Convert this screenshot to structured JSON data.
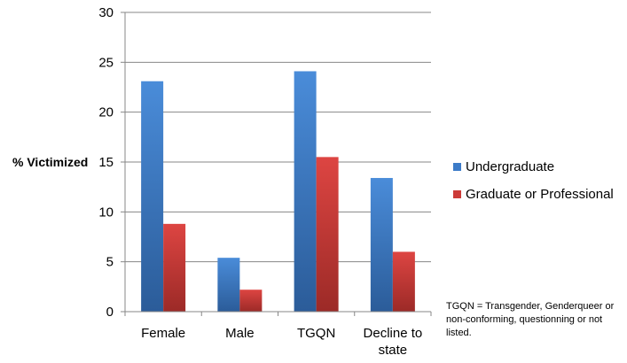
{
  "chart_data": {
    "type": "bar",
    "ylabel": "% Victimized",
    "xlabel": "",
    "ylim": [
      0,
      30
    ],
    "yticks": [
      "0",
      "5",
      "10",
      "15",
      "20",
      "25",
      "30"
    ],
    "grid": true,
    "legend_position": "right",
    "categories": [
      "Female",
      "Male",
      "TGQN",
      "Decline to state"
    ],
    "category_lines": [
      [
        "Female"
      ],
      [
        "Male"
      ],
      [
        "TGQN"
      ],
      [
        "Decline to",
        "state"
      ]
    ],
    "series": [
      {
        "name": "Undergraduate",
        "color": "#3c7bc8",
        "values": [
          23.1,
          5.4,
          24.1,
          13.4
        ]
      },
      {
        "name": "Graduate or Professional",
        "color": "#cc3b38",
        "values": [
          8.8,
          2.2,
          15.5,
          6.0
        ]
      }
    ],
    "note": "TGQN = Transgender, Genderqueer or non-conforming, questionning or not listed."
  }
}
